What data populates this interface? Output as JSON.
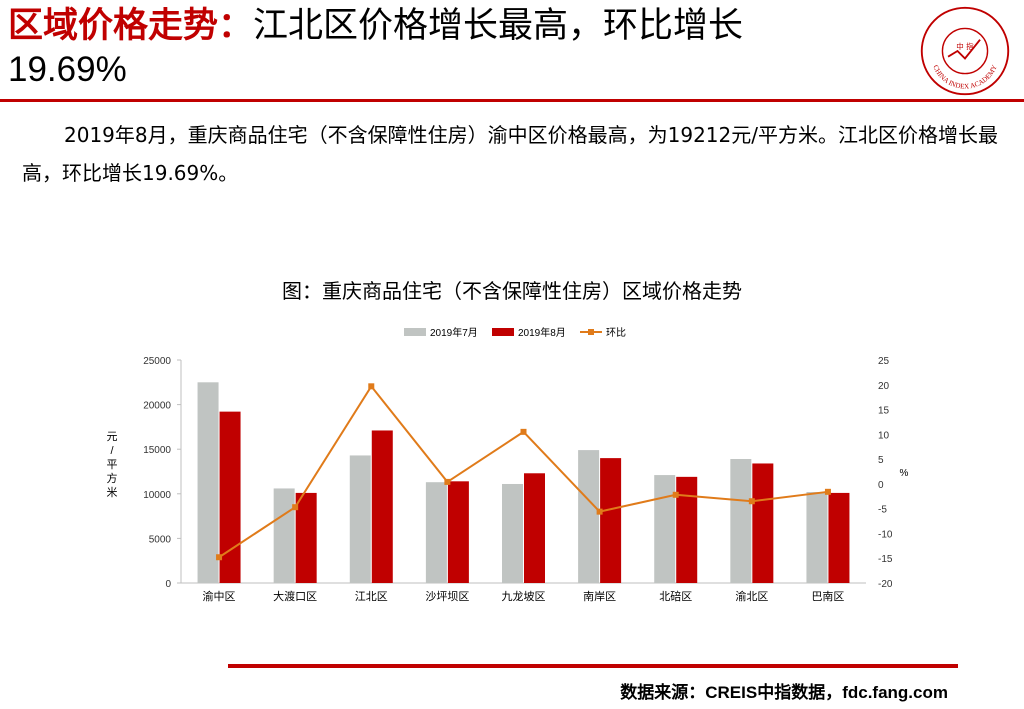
{
  "header": {
    "title_highlight": "区域价格走势：",
    "title_rest": "江北区价格增长最高，环比增长",
    "title_pct": "19.69%",
    "logo_text": "CHINA INDEX ACADEMY",
    "logo_mark": "中 指"
  },
  "lead_text": "2019年8月，重庆商品住宅（不含保障性住房）渝中区价格最高，为19212元/平方米。江北区价格增长最高，环比增长19.69%。",
  "chart_data": {
    "type": "bar",
    "title": "图：重庆商品住宅（不含保障性住房）区域价格走势",
    "categories": [
      "渝中区",
      "大渡口区",
      "江北区",
      "沙坪坝区",
      "九龙坡区",
      "南岸区",
      "北碚区",
      "渝北区",
      "巴南区"
    ],
    "series": [
      {
        "name": "2019年7月",
        "type": "bar",
        "color": "#c0c4c2",
        "axis": "left",
        "values": [
          22500,
          10600,
          14300,
          11300,
          11100,
          14900,
          12100,
          13900,
          10200
        ]
      },
      {
        "name": "2019年8月",
        "type": "bar",
        "color": "#c00000",
        "axis": "left",
        "values": [
          19212,
          10100,
          17100,
          11400,
          12300,
          14000,
          11900,
          13400,
          10100
        ]
      },
      {
        "name": "环比",
        "type": "line",
        "color": "#e07b1a",
        "axis": "right",
        "values": [
          -14.8,
          -4.7,
          19.69,
          0.4,
          10.5,
          -5.6,
          -2.2,
          -3.5,
          -1.6
        ]
      }
    ],
    "ylabel": "元/平方米",
    "y2label": "%",
    "ylim": [
      0,
      25000
    ],
    "yticks": [
      0,
      5000,
      10000,
      15000,
      20000,
      25000
    ],
    "y2lim": [
      -20,
      25
    ],
    "y2ticks": [
      -20,
      -15,
      -10,
      -5,
      0,
      5,
      10,
      15,
      20,
      25
    ],
    "legend_position": "top"
  },
  "footer": {
    "source": "数据来源：CREIS中指数据，fdc.fang.com"
  }
}
